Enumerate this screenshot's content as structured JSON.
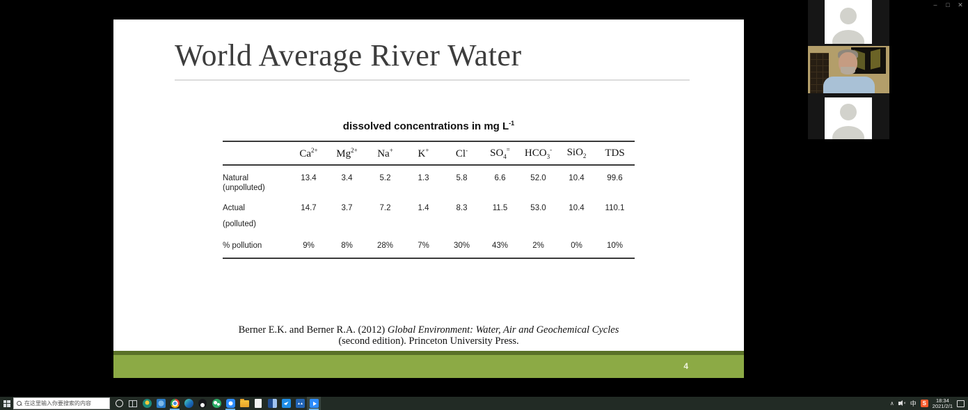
{
  "window_controls": {
    "minimize": "–",
    "restore": "□",
    "close": "✕"
  },
  "slide": {
    "title": "World Average River Water",
    "caption": {
      "text": "dissolved concentrations in mg L",
      "sup": "-1"
    },
    "table": {
      "headers": [
        {
          "b": "Ca",
          "sp": "2+"
        },
        {
          "b": "Mg",
          "sp": "2+"
        },
        {
          "b": "Na",
          "sp": "+"
        },
        {
          "b": "K",
          "sp": "+"
        },
        {
          "b": "Cl",
          "sp": "-"
        },
        {
          "b": "SO",
          "sb": "4",
          "sp": "="
        },
        {
          "b": "HCO",
          "sb": "3",
          "sp": "-"
        },
        {
          "b": "SiO",
          "sb": "2"
        },
        {
          "b": "TDS"
        }
      ],
      "rows": [
        {
          "label": [
            "Natural",
            "(unpolluted)"
          ],
          "values": [
            "13.4",
            "3.4",
            "5.2",
            "1.3",
            "5.8",
            "6.6",
            "52.0",
            "10.4",
            "99.6"
          ]
        },
        {
          "label": [
            "Actual",
            "(polluted)"
          ],
          "values": [
            "14.7",
            "3.7",
            "7.2",
            "1.4",
            "8.3",
            "11.5",
            "53.0",
            "10.4",
            "110.1"
          ]
        },
        {
          "label": [
            "% pollution"
          ],
          "values": [
            "9%",
            "8%",
            "28%",
            "7%",
            "30%",
            "43%",
            "2%",
            "0%",
            "10%"
          ]
        }
      ]
    },
    "citation": {
      "normal": "Berner E.K. and Berner R.A. (2012) ",
      "italic": "Global Environment: Water, Air and Geochemical Cycles",
      "line2": "(second edition). Princeton University Press."
    },
    "page_number": "4",
    "colors": {
      "accent_green": "#8caa45",
      "accent_green_dark": "#5a7128"
    }
  },
  "sidebar": {
    "participants": [
      {
        "kind": "avatar-placeholder"
      },
      {
        "kind": "live-webcam",
        "description": "man in blue shirt, tan wall, dark picture frames"
      },
      {
        "kind": "avatar-placeholder"
      }
    ]
  },
  "taskbar": {
    "search_placeholder": "在这里输入你要搜索的内容",
    "icons": [
      {
        "name": "cortana-icon",
        "kind": "cortana",
        "running": false
      },
      {
        "name": "task-view-icon",
        "kind": "taskview",
        "running": false
      },
      {
        "name": "teal-circle-app-icon",
        "kind": "teal",
        "running": false
      },
      {
        "name": "blue-utility-app-icon",
        "kind": "bluesq",
        "running": false
      },
      {
        "name": "chrome-icon",
        "kind": "chrome",
        "running": true
      },
      {
        "name": "edge-icon",
        "kind": "edge",
        "running": false
      },
      {
        "name": "qq-icon",
        "kind": "qq",
        "running": false
      },
      {
        "name": "wechat-icon",
        "kind": "wechat",
        "running": false
      },
      {
        "name": "meeting-app-icon",
        "kind": "meeting",
        "running": true
      },
      {
        "name": "file-explorer-icon",
        "kind": "folder",
        "running": false
      },
      {
        "name": "document-app-icon",
        "kind": "doc",
        "running": false
      },
      {
        "name": "word-app-icon",
        "kind": "word",
        "running": false
      },
      {
        "name": "blue-social-app-icon",
        "kind": "bluebird",
        "running": false
      },
      {
        "name": "blue-m-app-icon",
        "kind": "bluem",
        "glyph": "▲▲",
        "running": false
      },
      {
        "name": "active-video-app-icon",
        "kind": "activeapp",
        "running": true,
        "active": true
      }
    ],
    "tray": {
      "ime": "中",
      "sogou": "S",
      "time": "18:34",
      "date": "2021/2/1"
    }
  }
}
